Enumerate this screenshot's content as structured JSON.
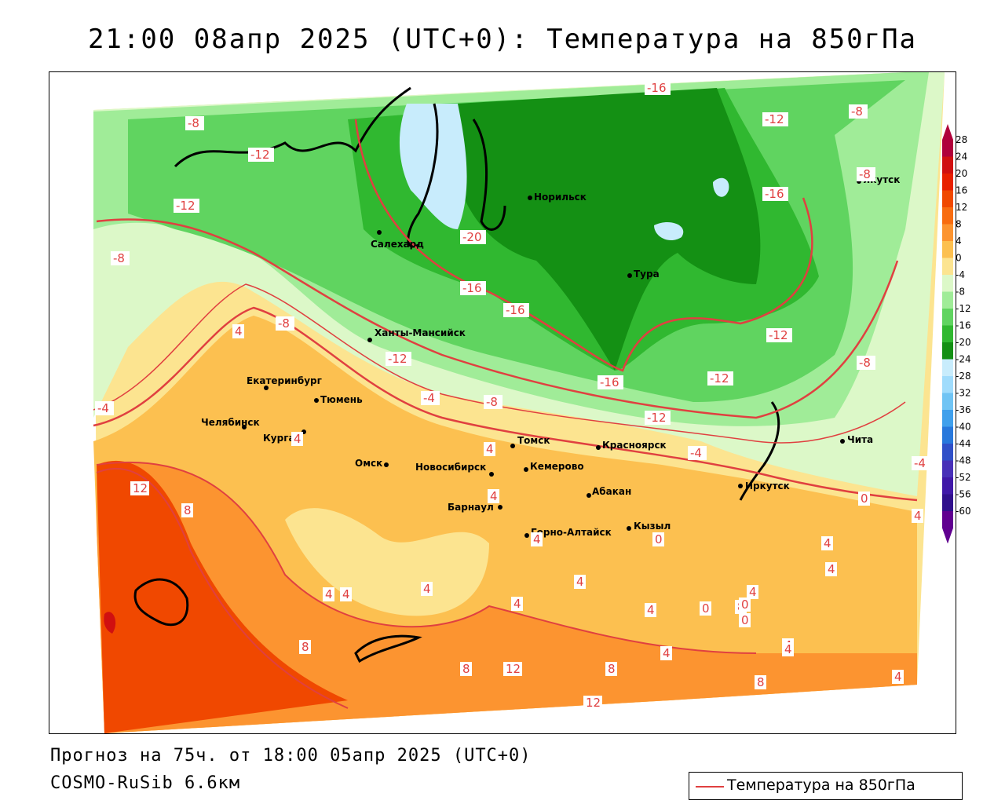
{
  "title": "21:00 08апр 2025 (UTC+0): Температура на 850гПа",
  "footer": {
    "forecast": "Прогноз на 75ч. от 18:00 05апр 2025 (UTC+0)",
    "model": "COSMO-RuSib 6.6км"
  },
  "legend": {
    "label": "Температура на 850гПа",
    "color": "#e04040"
  },
  "colorbar": {
    "labels": [
      "28",
      "24",
      "20",
      "16",
      "12",
      "8",
      "4",
      "0",
      "-4",
      "-8",
      "-12",
      "-16",
      "-20",
      "-24",
      "-28",
      "-32",
      "-36",
      "-40",
      "-44",
      "-48",
      "-52",
      "-56",
      "-60"
    ],
    "colors": [
      "#b0003a",
      "#d01010",
      "#e82000",
      "#f04800",
      "#f86c10",
      "#fc9430",
      "#fcc050",
      "#fce490",
      "#dcf8c8",
      "#a0ec98",
      "#60d460",
      "#30b830",
      "#149014",
      "#c8ecfc",
      "#a0dcfc",
      "#70c4f4",
      "#40a0ec",
      "#2878dc",
      "#3050c8",
      "#4830b8",
      "#4018a8",
      "#30108c",
      "#600090"
    ]
  },
  "cities": [
    {
      "name": "Салехард"
    },
    {
      "name": "Норильск"
    },
    {
      "name": "Якутск"
    },
    {
      "name": "Тура"
    },
    {
      "name": "Ханты-Мансийск"
    },
    {
      "name": "Екатеринбург"
    },
    {
      "name": "Тюмень"
    },
    {
      "name": "Челябинск"
    },
    {
      "name": "Курган"
    },
    {
      "name": "Омск"
    },
    {
      "name": "Новосибирск"
    },
    {
      "name": "Томск"
    },
    {
      "name": "Кемерово"
    },
    {
      "name": "Красноярск"
    },
    {
      "name": "Абакан"
    },
    {
      "name": "Барнаул"
    },
    {
      "name": "Горно-Алтайск"
    },
    {
      "name": "Кызыл"
    },
    {
      "name": "Иркутск"
    },
    {
      "name": "Чита"
    }
  ],
  "isotherm_labels": [
    "-8",
    "-12",
    "-12",
    "-8",
    "-16",
    "-20",
    "-16",
    "-16",
    "-12",
    "-8",
    "-16",
    "-12",
    "-12",
    "-8",
    "-4",
    "-4",
    "-8",
    "-12",
    "-16",
    "-12",
    "-4",
    "-8",
    "-8",
    "-4",
    "0",
    "4",
    "4",
    "4",
    "12",
    "8",
    "4",
    "4",
    "4",
    "8",
    "8",
    "12",
    "8",
    "12",
    "8",
    "0",
    "0",
    "4",
    "4",
    "4",
    "4",
    "0",
    "0",
    "4",
    "4",
    "4",
    "8",
    "4",
    "4",
    "4",
    "4",
    "4",
    "4"
  ]
}
